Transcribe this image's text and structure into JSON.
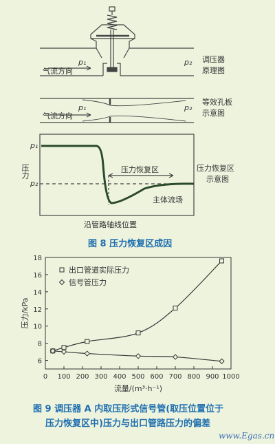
{
  "fig8": {
    "labels": {
      "p1_a": "p₁",
      "p2_a": "p₂",
      "flow_a": "气流方向",
      "diagram1_line1": "调压器",
      "diagram1_line2": "原理图",
      "p1_b": "p₁",
      "p2_b": "p₂",
      "flow_b": "气流方向",
      "diagram2_line1": "等效孔板",
      "diagram2_line2": "示意图",
      "ylabel": "压力",
      "p1_c": "p₁",
      "p2_c": "p₂",
      "recovery_zone": "压力恢复区",
      "diagram3_line1": "压力恢复区",
      "diagram3_line2": "示意图",
      "main_flow": "主体流场",
      "xlabel": "沿管路轴线位置"
    },
    "caption": "图 8   压力恢复区成因"
  },
  "chart_data": {
    "type": "line",
    "xlabel": "流量/(m³·h⁻¹)",
    "ylabel": "压力/kPa",
    "xlim": [
      0,
      1000
    ],
    "ylim": [
      5,
      18
    ],
    "xticks": [
      0,
      100,
      200,
      300,
      400,
      500,
      600,
      700,
      800,
      900,
      1000
    ],
    "yticks": [
      6,
      8,
      10,
      12,
      14,
      16,
      18
    ],
    "grid": false,
    "legend_position": "top-left",
    "series": [
      {
        "name": "出口管道实际压力",
        "marker": "square",
        "x": [
          40,
          100,
          225,
          500,
          700,
          950
        ],
        "y": [
          7.1,
          7.5,
          8.2,
          9.2,
          12.1,
          17.6
        ]
      },
      {
        "name": "信号管压力",
        "marker": "diamond",
        "x": [
          40,
          100,
          225,
          500,
          700,
          950
        ],
        "y": [
          7.1,
          7.0,
          6.8,
          6.5,
          6.4,
          5.9
        ]
      }
    ]
  },
  "fig9": {
    "caption_line1": "图 9   调压器 A 内取压形式信号管(取压位置位于",
    "caption_line2": "压力恢复区中)压力与出口管路压力的偏差"
  },
  "watermark": "www.Egas.cn"
}
